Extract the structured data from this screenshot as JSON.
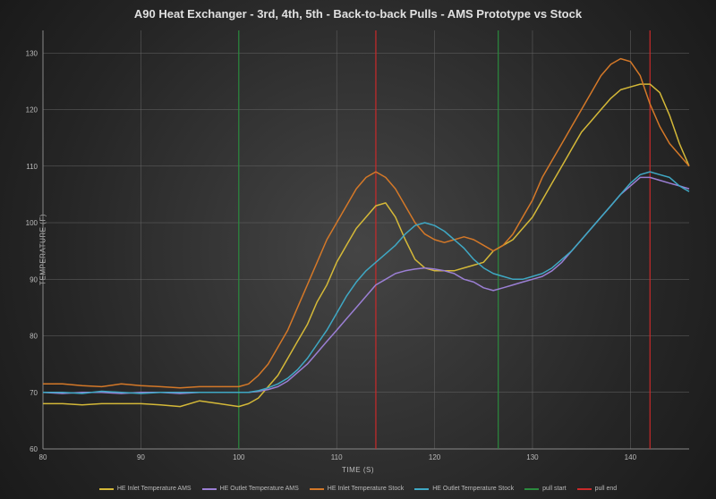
{
  "chart": {
    "type": "line",
    "title": "A90 Heat Exchanger - 3rd, 4th, 5th - Back-to-back Pulls - AMS Prototype vs Stock",
    "title_fontsize": 13,
    "title_color": "#e0e0e0",
    "ylabel": "TEMPERATURE (F)",
    "xlabel": "TIME (S)",
    "label_fontsize": 8,
    "label_color": "#bbbbbb",
    "background": "radial-gradient(#454545,#1a1a1a)",
    "grid_color": "#666666",
    "axis_color": "#888888",
    "tick_fontsize": 8,
    "tick_color": "#bbbbbb",
    "xlim": [
      80,
      146
    ],
    "ylim": [
      60,
      134
    ],
    "xtick_step": 10,
    "ytick_step": 10,
    "xticks": [
      80,
      90,
      100,
      110,
      120,
      130,
      140
    ],
    "yticks": [
      60,
      70,
      80,
      90,
      100,
      110,
      120,
      130
    ],
    "line_width": 1.5,
    "series": [
      {
        "name": "HE Inlet Temperature AMS",
        "color": "#d4b838",
        "x": [
          80,
          82,
          84,
          86,
          88,
          90,
          92,
          94,
          96,
          98,
          100,
          101,
          102,
          103,
          104,
          105,
          106,
          107,
          108,
          109,
          110,
          111,
          112,
          113,
          114,
          115,
          116,
          117,
          118,
          119,
          120,
          121,
          122,
          123,
          124,
          125,
          126,
          127,
          128,
          129,
          130,
          131,
          132,
          133,
          134,
          135,
          136,
          137,
          138,
          139,
          140,
          141,
          142,
          143,
          144,
          145,
          146
        ],
        "y": [
          68,
          68,
          67.8,
          68,
          68,
          68,
          67.8,
          67.5,
          68.5,
          68,
          67.5,
          68,
          69,
          71,
          73,
          76,
          79,
          82,
          86,
          89,
          93,
          96,
          99,
          101,
          103,
          103.5,
          101,
          97,
          93.5,
          92,
          91.5,
          91.5,
          91.5,
          92,
          92.5,
          93,
          95,
          96,
          97,
          99,
          101,
          104,
          107,
          110,
          113,
          116,
          118,
          120,
          122,
          123.5,
          124,
          124.5,
          124.5,
          123,
          119,
          114,
          110
        ]
      },
      {
        "name": "HE Outlet Temperature AMS",
        "color": "#9b7fd4",
        "x": [
          80,
          82,
          84,
          86,
          88,
          90,
          92,
          94,
          96,
          98,
          100,
          101,
          102,
          103,
          104,
          105,
          106,
          107,
          108,
          109,
          110,
          111,
          112,
          113,
          114,
          115,
          116,
          117,
          118,
          119,
          120,
          121,
          122,
          123,
          124,
          125,
          126,
          127,
          128,
          129,
          130,
          131,
          132,
          133,
          134,
          135,
          136,
          137,
          138,
          139,
          140,
          141,
          142,
          143,
          144,
          145,
          146
        ],
        "y": [
          70,
          69.8,
          70,
          70,
          69.8,
          70,
          70,
          69.8,
          70,
          70,
          70,
          70,
          70.2,
          70.5,
          71,
          72,
          73.5,
          75,
          77,
          79,
          81,
          83,
          85,
          87,
          89,
          90,
          91,
          91.5,
          91.8,
          92,
          91.8,
          91.5,
          91,
          90,
          89.5,
          88.5,
          88,
          88.5,
          89,
          89.5,
          90,
          90.5,
          91.5,
          93,
          95,
          97,
          99,
          101,
          103,
          105,
          106.5,
          108,
          108,
          107.5,
          107,
          106.5,
          106
        ]
      },
      {
        "name": "HE Inlet Temperature Stock",
        "color": "#d47828",
        "x": [
          80,
          82,
          84,
          86,
          88,
          90,
          92,
          94,
          96,
          98,
          100,
          101,
          102,
          103,
          104,
          105,
          106,
          107,
          108,
          109,
          110,
          111,
          112,
          113,
          114,
          115,
          116,
          117,
          118,
          119,
          120,
          121,
          122,
          123,
          124,
          125,
          126,
          127,
          128,
          129,
          130,
          131,
          132,
          133,
          134,
          135,
          136,
          137,
          138,
          139,
          140,
          141,
          142,
          143,
          144,
          145,
          146
        ],
        "y": [
          71.5,
          71.5,
          71.2,
          71,
          71.5,
          71.2,
          71,
          70.8,
          71,
          71,
          71,
          71.5,
          73,
          75,
          78,
          81,
          85,
          89,
          93,
          97,
          100,
          103,
          106,
          108,
          109,
          108,
          106,
          103,
          100,
          98,
          97,
          96.5,
          97,
          97.5,
          97,
          96,
          95,
          96,
          98,
          101,
          104,
          108,
          111,
          114,
          117,
          120,
          123,
          126,
          128,
          129,
          128.5,
          126,
          121,
          117,
          114,
          112,
          110
        ]
      },
      {
        "name": "HE Outlet Temperature Stock",
        "color": "#3fa8c4",
        "x": [
          80,
          82,
          84,
          86,
          88,
          90,
          92,
          94,
          96,
          98,
          100,
          101,
          102,
          103,
          104,
          105,
          106,
          107,
          108,
          109,
          110,
          111,
          112,
          113,
          114,
          115,
          116,
          117,
          118,
          119,
          120,
          121,
          122,
          123,
          124,
          125,
          126,
          127,
          128,
          129,
          130,
          131,
          132,
          133,
          134,
          135,
          136,
          137,
          138,
          139,
          140,
          141,
          142,
          143,
          144,
          145,
          146
        ],
        "y": [
          70,
          70,
          69.8,
          70.2,
          70,
          69.8,
          70,
          70,
          70,
          70,
          70,
          70,
          70.3,
          70.8,
          71.5,
          72.5,
          74,
          76,
          78.5,
          81,
          84,
          87,
          89.5,
          91.5,
          93,
          94.5,
          96,
          98,
          99.5,
          100,
          99.5,
          98.5,
          97,
          95.5,
          93.5,
          92,
          91,
          90.5,
          90,
          90,
          90.5,
          91,
          92,
          93.5,
          95,
          97,
          99,
          101,
          103,
          105,
          107,
          108.5,
          109,
          108.5,
          108,
          106.5,
          105.5
        ]
      }
    ],
    "vertical_lines": [
      {
        "name": "pull start",
        "color": "#2b8a3e",
        "x": [
          100,
          126.5
        ]
      },
      {
        "name": "pull end",
        "color": "#c92a2a",
        "x": [
          114,
          142
        ]
      }
    ],
    "legend": {
      "position": "bottom",
      "fontsize": 7,
      "color": "#bbbbbb",
      "items": [
        {
          "label": "HE Inlet Temperature AMS",
          "color": "#d4b838"
        },
        {
          "label": "HE Outlet Temperature AMS",
          "color": "#9b7fd4"
        },
        {
          "label": "HE Inlet Temperature Stock",
          "color": "#d47828"
        },
        {
          "label": "HE Outlet Temperature Stock",
          "color": "#3fa8c4"
        },
        {
          "label": "pull start",
          "color": "#2b8a3e"
        },
        {
          "label": "pull end",
          "color": "#c92a2a"
        }
      ]
    }
  }
}
